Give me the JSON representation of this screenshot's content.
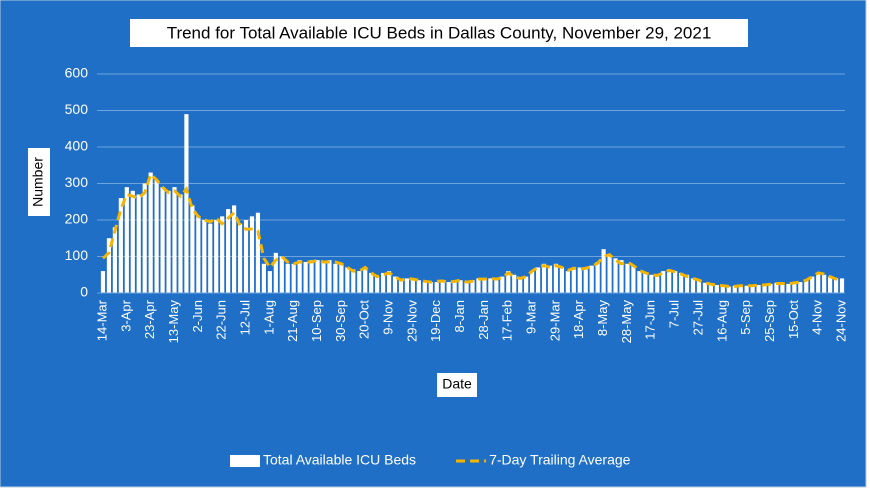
{
  "chart_data": {
    "type": "bar",
    "title": "Trend for Total Available ICU Beds in Dallas County, November 29, 2021",
    "x_label": "Date",
    "y_label": "Number",
    "categories": [
      "14-Mar",
      null,
      null,
      null,
      "3-Apr",
      null,
      null,
      null,
      "23-Apr",
      null,
      null,
      null,
      "13-May",
      null,
      null,
      null,
      "2-Jun",
      null,
      null,
      null,
      "22-Jun",
      null,
      null,
      null,
      "12-Jul",
      null,
      null,
      null,
      "1-Aug",
      null,
      null,
      null,
      "21-Aug",
      null,
      null,
      null,
      "10-Sep",
      null,
      null,
      null,
      "30-Sep",
      null,
      null,
      null,
      "20-Oct",
      null,
      null,
      null,
      "9-Nov",
      null,
      null,
      null,
      "29-Nov",
      null,
      null,
      null,
      "19-Dec",
      null,
      null,
      null,
      "8-Jan",
      null,
      null,
      null,
      "28-Jan",
      null,
      null,
      null,
      "17-Feb",
      null,
      null,
      null,
      "9-Mar",
      null,
      null,
      null,
      "29-Mar",
      null,
      null,
      null,
      "18-Apr",
      null,
      null,
      null,
      "8-May",
      null,
      null,
      null,
      "28-May",
      null,
      null,
      null,
      "17-Jun",
      null,
      null,
      null,
      "7-Jul",
      null,
      null,
      null,
      "27-Jul",
      null,
      null,
      null,
      "16-Aug",
      null,
      null,
      null,
      "5-Sep",
      null,
      null,
      null,
      "25-Sep",
      null,
      null,
      null,
      "15-Oct",
      null,
      null,
      null,
      "4-Nov",
      null,
      null,
      null,
      "24-Nov"
    ],
    "series": [
      {
        "name": "Total Available ICU Beds",
        "type": "bar",
        "color": "#ffffff",
        "values": [
          60,
          150,
          180,
          260,
          290,
          280,
          270,
          300,
          330,
          310,
          290,
          280,
          290,
          270,
          490,
          240,
          210,
          200,
          190,
          200,
          210,
          230,
          240,
          190,
          200,
          210,
          220,
          80,
          60,
          110,
          100,
          80,
          80,
          90,
          85,
          90,
          90,
          85,
          90,
          80,
          80,
          70,
          65,
          60,
          70,
          55,
          45,
          55,
          60,
          45,
          35,
          40,
          35,
          35,
          30,
          30,
          30,
          35,
          30,
          35,
          35,
          30,
          35,
          40,
          40,
          40,
          35,
          45,
          60,
          50,
          40,
          45,
          60,
          70,
          80,
          75,
          80,
          70,
          60,
          70,
          70,
          65,
          75,
          85,
          120,
          100,
          95,
          90,
          80,
          75,
          60,
          55,
          50,
          45,
          60,
          65,
          60,
          55,
          50,
          40,
          35,
          28,
          25,
          22,
          20,
          18,
          20,
          20,
          20,
          22,
          22,
          22,
          25,
          28,
          25,
          25,
          30,
          30,
          35,
          45,
          55,
          50,
          45,
          40,
          40
        ]
      },
      {
        "name": "7-Day Trailing Average",
        "type": "line",
        "color": "#f5b400",
        "values": [
          95,
          110,
          170,
          230,
          270,
          265,
          260,
          275,
          325,
          310,
          290,
          275,
          280,
          265,
          285,
          230,
          210,
          200,
          195,
          205,
          190,
          205,
          220,
          185,
          175,
          175,
          170,
          95,
          70,
          90,
          100,
          85,
          80,
          85,
          85,
          85,
          90,
          85,
          85,
          85,
          80,
          70,
          60,
          60,
          70,
          55,
          45,
          50,
          55,
          45,
          35,
          40,
          38,
          35,
          32,
          30,
          32,
          33,
          30,
          32,
          35,
          30,
          32,
          38,
          38,
          40,
          38,
          42,
          55,
          45,
          40,
          45,
          60,
          70,
          75,
          70,
          75,
          70,
          62,
          68,
          65,
          68,
          72,
          82,
          100,
          105,
          90,
          80,
          85,
          75,
          62,
          55,
          50,
          48,
          55,
          62,
          58,
          52,
          45,
          40,
          35,
          28,
          24,
          22,
          20,
          18,
          18,
          20,
          20,
          20,
          22,
          22,
          24,
          26,
          26,
          25,
          28,
          30,
          35,
          45,
          55,
          52,
          45,
          38,
          42
        ]
      }
    ],
    "ylim": [
      0,
      600
    ],
    "yticks": [
      0,
      100,
      200,
      300,
      400,
      500,
      600
    ],
    "grid": true
  }
}
